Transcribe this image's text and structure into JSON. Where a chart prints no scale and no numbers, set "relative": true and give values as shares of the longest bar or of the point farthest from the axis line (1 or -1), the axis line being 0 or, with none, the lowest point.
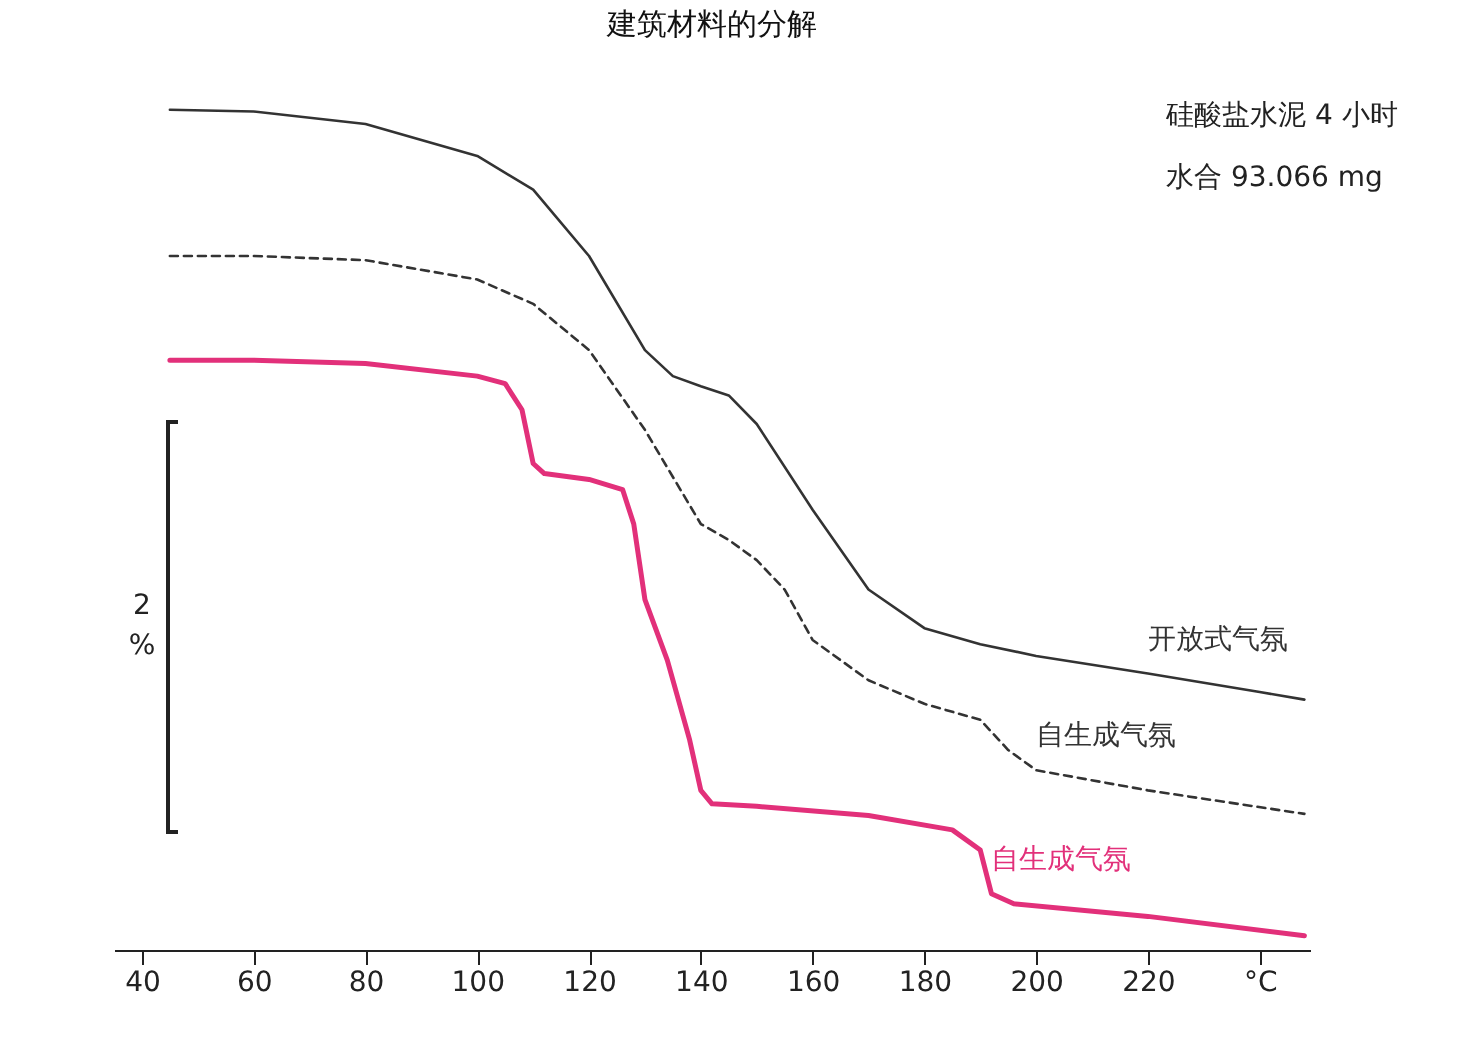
{
  "chart_data": {
    "type": "line",
    "title": "建筑材料的分解",
    "relative": true,
    "xlim": [
      35,
      249
    ],
    "xticks": [
      40,
      60,
      80,
      100,
      120,
      140,
      160,
      180,
      200,
      220,
      {
        "value": 240,
        "label": "°C"
      }
    ],
    "tick_labels": "x",
    "grid": false,
    "marker": "none",
    "annotations": [
      "硅酸盐水泥  4  小时",
      "水合 93.066 mg",
      "2 %"
    ],
    "series": [
      {
        "name": "开放式气氛",
        "color": "#333333",
        "line_style": "solid",
        "x": [
          45,
          60,
          80,
          100,
          110,
          120,
          130,
          135,
          140,
          145,
          150,
          160,
          170,
          180,
          190,
          200,
          220,
          240,
          248
        ],
        "values": [
          1.0,
          0.998,
          0.983,
          0.945,
          0.905,
          0.826,
          0.714,
          0.683,
          0.671,
          0.66,
          0.626,
          0.524,
          0.429,
          0.383,
          0.364,
          0.35,
          0.329,
          0.307,
          0.298
        ]
      },
      {
        "name": "自生成气氛",
        "color": "#333333",
        "line_style": "dashed",
        "x": [
          45,
          60,
          80,
          100,
          110,
          120,
          130,
          140,
          145,
          150,
          155,
          160,
          170,
          180,
          190,
          195,
          200,
          220,
          248
        ],
        "values": [
          0.826,
          0.826,
          0.821,
          0.798,
          0.769,
          0.714,
          0.619,
          0.507,
          0.488,
          0.464,
          0.429,
          0.369,
          0.321,
          0.293,
          0.274,
          0.238,
          0.214,
          0.19,
          0.162
        ]
      },
      {
        "name": "自生成气氛",
        "color": "#e2307a",
        "line_style": "solid",
        "x": [
          45,
          60,
          80,
          100,
          105,
          108,
          110,
          112,
          120,
          126,
          128,
          130,
          134,
          138,
          140,
          142,
          150,
          170,
          185,
          190,
          192,
          196,
          220,
          248
        ],
        "values": [
          0.702,
          0.702,
          0.698,
          0.683,
          0.674,
          0.643,
          0.579,
          0.567,
          0.56,
          0.548,
          0.507,
          0.417,
          0.345,
          0.25,
          0.19,
          0.174,
          0.171,
          0.16,
          0.143,
          0.119,
          0.067,
          0.055,
          0.04,
          0.017
        ]
      }
    ]
  }
}
